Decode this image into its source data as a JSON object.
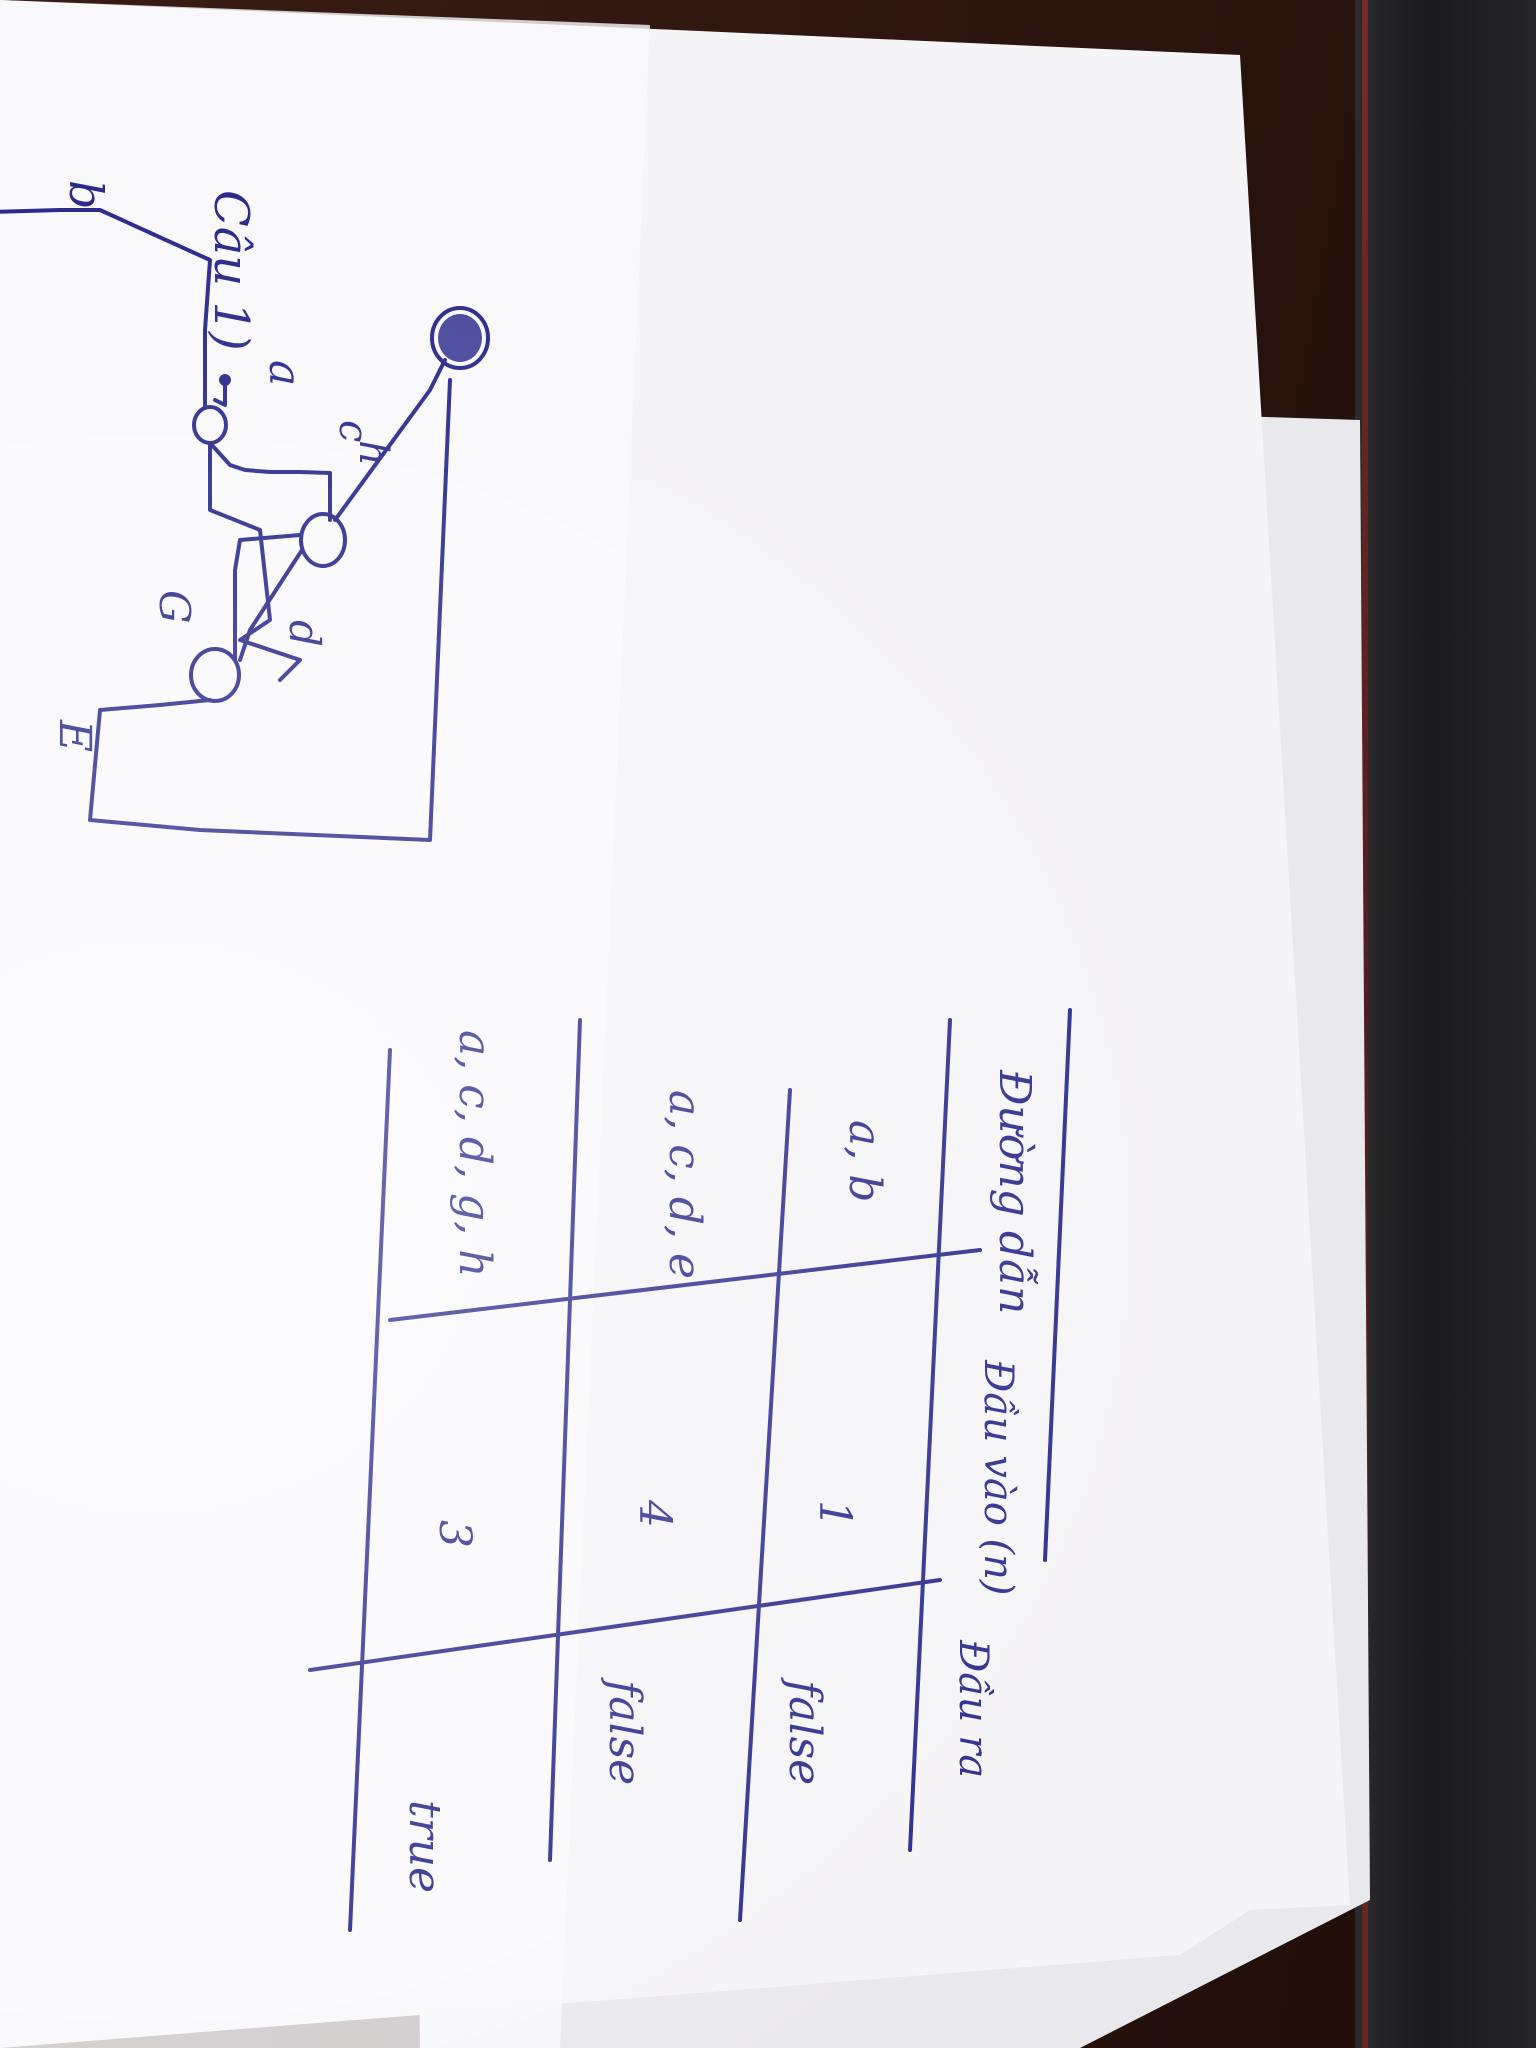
{
  "question_label": "Câu 1)",
  "graph": {
    "node_label_b": "b",
    "edge_a": "a",
    "edge_c": "c",
    "edge_h": "h",
    "edge_d": "d",
    "edge_g": "G",
    "edge_e": "E"
  },
  "table": {
    "headers": [
      "Đường dẫn",
      "Đầu vào (n)",
      "Đầu ra"
    ],
    "rows": [
      [
        "a, b",
        "1",
        "false"
      ],
      [
        "a, c, d, e",
        "4",
        "false"
      ],
      [
        "a, c, d, g, h",
        "3",
        "true"
      ]
    ]
  },
  "colors": {
    "ink": "#2b2a8c",
    "paper": "#f4f4f6",
    "desk": "#2b140e"
  }
}
